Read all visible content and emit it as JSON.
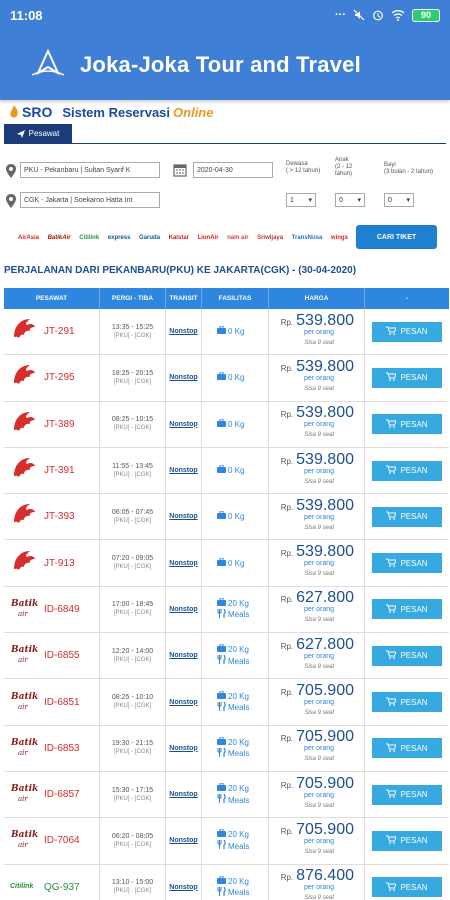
{
  "status_bar": {
    "time": "11:08",
    "icons_text": "···",
    "battery": "90"
  },
  "app_bar": {
    "title": "Joka-Joka Tour and Travel"
  },
  "sro": {
    "logo_text": "SRO",
    "title": "Sistem Reservasi",
    "online": "Online"
  },
  "tab": {
    "label": "Pesawat"
  },
  "search": {
    "origin": "PKU - Pekanbaru | Sultan Syarif K",
    "destination": "CGK - Jakarta | Soekarno Hatta Int",
    "date": "2020-04-30",
    "passengers": [
      {
        "label1": "Dewasa",
        "label2": "( > 12 tahun)",
        "label3": "",
        "value": "1"
      },
      {
        "label1": "Anak",
        "label2": "(2 - 12",
        "label3": "tahun)",
        "value": "0"
      },
      {
        "label1": "Bayi",
        "label2": "(3 bulan - 2 tahun)",
        "label3": "",
        "value": "0"
      }
    ],
    "button": "CARI TIKET",
    "airline_logos": [
      "AirAsia",
      "BatikAir",
      "Citilink",
      "express",
      "Garuda",
      "Kalstar",
      "LionAir",
      "nam air",
      "Sriwijaya",
      "TransNusa",
      "wings"
    ]
  },
  "route_title": "PERJALANAN DARI PEKANBARU(PKU) KE JAKARTA(CGK) - (30-04-2020)",
  "table": {
    "headers": [
      "PESAWAT",
      "PERGI - TIBA",
      "TRANSIT",
      "FASILITAS",
      "HARGA",
      "-"
    ],
    "rows": [
      {
        "code": "JT-291",
        "airline": "lion",
        "time": "13:35 - 15:25",
        "route": "[PKU] - [CGK]",
        "transit": "Nonstop",
        "baggage": "0 Kg",
        "meals": "",
        "rp": "Rp.",
        "price": "539.800",
        "per": "per orang",
        "sisa": "Sisa 9 seat",
        "btn": "PESAN"
      },
      {
        "code": "JT-295",
        "airline": "lion",
        "time": "18:25 - 20:15",
        "route": "[PKU] - [CGK]",
        "transit": "Nonstop",
        "baggage": "0 Kg",
        "meals": "",
        "rp": "Rp.",
        "price": "539.800",
        "per": "per orang",
        "sisa": "Sisa 9 seat",
        "btn": "PESAN"
      },
      {
        "code": "JT-389",
        "airline": "lion",
        "time": "08:25 - 10:15",
        "route": "[PKU] - [CGK]",
        "transit": "Nonstop",
        "baggage": "0 Kg",
        "meals": "",
        "rp": "Rp.",
        "price": "539.800",
        "per": "per orang",
        "sisa": "Sisa 9 seat",
        "btn": "PESAN"
      },
      {
        "code": "JT-391",
        "airline": "lion",
        "time": "11:55 - 13:45",
        "route": "[PKU] - [CGK]",
        "transit": "Nonstop",
        "baggage": "0 Kg",
        "meals": "",
        "rp": "Rp.",
        "price": "539.800",
        "per": "per orang",
        "sisa": "Sisa 9 seat",
        "btn": "PESAN"
      },
      {
        "code": "JT-393",
        "airline": "lion",
        "time": "06:05 - 07:45",
        "route": "[PKU] - [CGK]",
        "transit": "Nonstop",
        "baggage": "0 Kg",
        "meals": "",
        "rp": "Rp.",
        "price": "539.800",
        "per": "per orang",
        "sisa": "Sisa 9 seat",
        "btn": "PESAN"
      },
      {
        "code": "JT-913",
        "airline": "lion",
        "time": "07:20 - 09:05",
        "route": "[PKU] - [CGK]",
        "transit": "Nonstop",
        "baggage": "0 Kg",
        "meals": "",
        "rp": "Rp.",
        "price": "539.800",
        "per": "per orang",
        "sisa": "Sisa 9 seat",
        "btn": "PESAN"
      },
      {
        "code": "ID-6849",
        "airline": "batik",
        "time": "17:00 - 18:45",
        "route": "[PKU] - [CGK]",
        "transit": "Nonstop",
        "baggage": "20 Kg",
        "meals": "Meals",
        "rp": "Rp.",
        "price": "627.800",
        "per": "per orang",
        "sisa": "Sisa 9 seat",
        "btn": "PESAN"
      },
      {
        "code": "ID-6855",
        "airline": "batik",
        "time": "12:20 - 14:00",
        "route": "[PKU] - [CGK]",
        "transit": "Nonstop",
        "baggage": "20 Kg",
        "meals": "Meals",
        "rp": "Rp.",
        "price": "627.800",
        "per": "per orang",
        "sisa": "Sisa 9 seat",
        "btn": "PESAN"
      },
      {
        "code": "ID-6851",
        "airline": "batik",
        "time": "08:25 - 10:10",
        "route": "[PKU] - [CGK]",
        "transit": "Nonstop",
        "baggage": "20 Kg",
        "meals": "Meals",
        "rp": "Rp.",
        "price": "705.900",
        "per": "per orang",
        "sisa": "Sisa 9 seat",
        "btn": "PESAN"
      },
      {
        "code": "ID-6853",
        "airline": "batik",
        "time": "19:30 - 21:15",
        "route": "[PKU] - [CGK]",
        "transit": "Nonstop",
        "baggage": "20 Kg",
        "meals": "Meals",
        "rp": "Rp.",
        "price": "705.900",
        "per": "per orang",
        "sisa": "Sisa 9 seat",
        "btn": "PESAN"
      },
      {
        "code": "ID-6857",
        "airline": "batik",
        "time": "15:30 - 17:15",
        "route": "[PKU] - [CGK]",
        "transit": "Nonstop",
        "baggage": "20 Kg",
        "meals": "Meals",
        "rp": "Rp.",
        "price": "705.900",
        "per": "per orang",
        "sisa": "Sisa 9 seat",
        "btn": "PESAN"
      },
      {
        "code": "ID-7064",
        "airline": "batik",
        "time": "06:20 - 08:05",
        "route": "[PKU] - [CGK]",
        "transit": "Nonstop",
        "baggage": "20 Kg",
        "meals": "Meals",
        "rp": "Rp.",
        "price": "705.900",
        "per": "per orang",
        "sisa": "Sisa 9 seat",
        "btn": "PESAN"
      },
      {
        "code": "QG-937",
        "airline": "citilink",
        "time": "13:10 - 15:00",
        "route": "[PKU] - [CGK]",
        "transit": "Nonstop",
        "baggage": "20 Kg",
        "meals": "Meals",
        "rp": "Rp.",
        "price": "876.400",
        "per": "per orang",
        "sisa": "Sisa 9 seat",
        "btn": "PESAN"
      }
    ]
  },
  "colors": {
    "primary": "#3f7fd6",
    "header": "#2e86de",
    "button": "#36a9e1",
    "lion_red": "#d62d2d",
    "citilink_green": "#2a8f3d"
  }
}
